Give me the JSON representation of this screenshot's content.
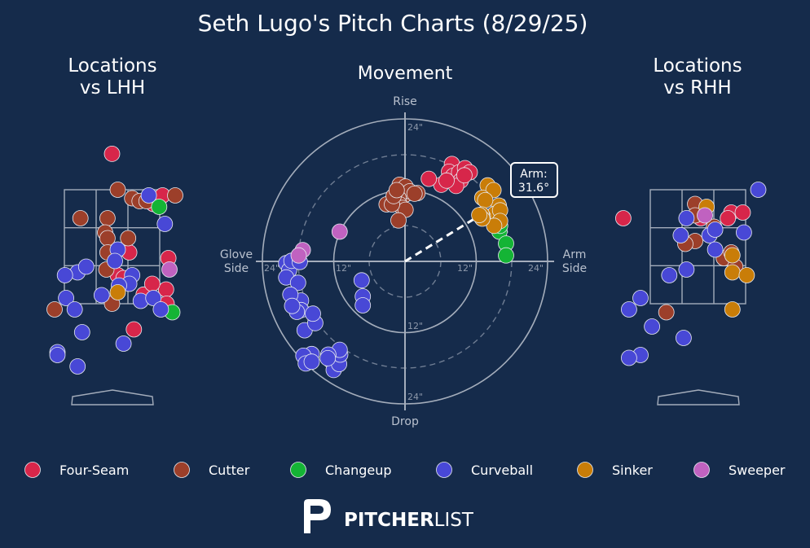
{
  "title": "Seth Lugo's Pitch Charts (8/29/25)",
  "panels": {
    "lhh_title": [
      "Locations",
      "vs LHH"
    ],
    "movement_title": "Movement",
    "rhh_title": [
      "Locations",
      "vs RHH"
    ]
  },
  "movement_labels": {
    "rise": "Rise",
    "drop": "Drop",
    "glove": [
      "Glove",
      "Side"
    ],
    "arm": [
      "Arm",
      "Side"
    ],
    "ticks": [
      "24\"",
      "12\"",
      "12\"",
      "24\"",
      "24\"",
      "12\"",
      "12\"",
      "24\""
    ],
    "arm_angle_label": [
      "Arm:",
      "31.6°"
    ]
  },
  "colors": {
    "background": "#152b4b",
    "Four-Seam": "#d7264a",
    "Cutter": "#9c3f2a",
    "Changeup": "#14b435",
    "Curveball": "#4848d6",
    "Sinker": "#c97d08",
    "Sweeper": "#c062c0"
  },
  "legend": [
    "Four-Seam",
    "Cutter",
    "Changeup",
    "Curveball",
    "Sinker",
    "Sweeper"
  ],
  "brand": {
    "p1": "PITCHER",
    "p2": "LIST"
  },
  "chart_data": [
    {
      "type": "scatter",
      "title": "Movement",
      "arm_angle_deg": 31.6,
      "xlim": [
        -24,
        24
      ],
      "ylim": [
        -24,
        24
      ],
      "series": [
        {
          "name": "Four-Seam",
          "points": [
            [
              7.9,
              16.4
            ],
            [
              7.4,
              15.1
            ],
            [
              8.1,
              14.4
            ],
            [
              9.1,
              15.0
            ],
            [
              10.1,
              15.7
            ],
            [
              10.9,
              15.0
            ],
            [
              9.4,
              13.6
            ],
            [
              8.6,
              12.7
            ],
            [
              6.1,
              12.9
            ],
            [
              4.0,
              13.9
            ],
            [
              10.0,
              14.5
            ],
            [
              7.0,
              13.6
            ]
          ]
        },
        {
          "name": "Cutter",
          "points": [
            [
              -0.9,
              12.9
            ],
            [
              0.1,
              12.6
            ],
            [
              -0.2,
              11.1
            ],
            [
              0.8,
              11.8
            ],
            [
              -1.1,
              10.7
            ],
            [
              -1.4,
              9.7
            ],
            [
              -0.9,
              9.6
            ],
            [
              -0.4,
              9.0
            ],
            [
              0.1,
              8.7
            ],
            [
              -3.1,
              9.6
            ],
            [
              -2.2,
              9.6
            ],
            [
              -1.9,
              11.0
            ],
            [
              -1.4,
              12.0
            ],
            [
              2.1,
              11.5
            ],
            [
              1.6,
              11.4
            ],
            [
              -1.1,
              6.9
            ]
          ]
        },
        {
          "name": "Changeup",
          "points": [
            [
              15.9,
              5.0
            ],
            [
              17.0,
              3.0
            ],
            [
              17.0,
              1.0
            ],
            [
              16.0,
              6.0
            ]
          ]
        },
        {
          "name": "Curveball",
          "points": [
            [
              -20.0,
              -0.3
            ],
            [
              -19.5,
              -1.5
            ],
            [
              -20.0,
              -2.7
            ],
            [
              -19.1,
              0.1
            ],
            [
              -17.7,
              -0.1
            ],
            [
              -18.0,
              -3.6
            ],
            [
              -17.5,
              -6.6
            ],
            [
              -17.5,
              -8.2
            ],
            [
              -19.3,
              -5.6
            ],
            [
              -18.2,
              -8.5
            ],
            [
              -19.0,
              -7.5
            ],
            [
              -16.9,
              -11.6
            ],
            [
              -15.1,
              -10.4
            ],
            [
              -15.5,
              -8.8
            ],
            [
              -15.7,
              -15.6
            ],
            [
              -17.1,
              -15.9
            ],
            [
              -16.7,
              -17.2
            ],
            [
              -15.7,
              -16.9
            ],
            [
              -12.6,
              -16.6
            ],
            [
              -12.0,
              -18.3
            ],
            [
              -11.1,
              -17.3
            ],
            [
              -10.9,
              -15.7
            ],
            [
              -11.0,
              -14.9
            ],
            [
              -12.9,
              -15.7
            ],
            [
              -13.0,
              -16.3
            ],
            [
              -7.3,
              -3.2
            ],
            [
              -7.1,
              -5.9
            ],
            [
              -7.1,
              -7.4
            ]
          ]
        },
        {
          "name": "Sinker",
          "points": [
            [
              13.9,
              12.8
            ],
            [
              14.9,
              12.0
            ],
            [
              15.8,
              9.4
            ],
            [
              15.1,
              8.0
            ],
            [
              16.0,
              8.6
            ],
            [
              13.0,
              10.7
            ],
            [
              13.5,
              10.3
            ],
            [
              13.1,
              7.6
            ],
            [
              16.0,
              6.8
            ],
            [
              12.9,
              7.9
            ],
            [
              15.0,
              6.0
            ],
            [
              13.0,
              7.2
            ],
            [
              12.5,
              7.8
            ]
          ]
        },
        {
          "name": "Sweeper",
          "points": [
            [
              -17.2,
              1.9
            ],
            [
              -17.9,
              1.0
            ],
            [
              -11.0,
              5.0
            ]
          ]
        }
      ]
    },
    {
      "type": "scatter",
      "title": "Locations vs LHH",
      "xlim": [
        -2,
        2
      ],
      "ylim": [
        0,
        5
      ],
      "series": [
        {
          "name": "Four-Seam",
          "points": [
            [
              0.0,
              4.13
            ],
            [
              0.72,
              3.25
            ],
            [
              0.88,
              3.4
            ],
            [
              0.3,
              2.4
            ],
            [
              0.1,
              2.0
            ],
            [
              0.2,
              1.95
            ],
            [
              0.55,
              1.66
            ],
            [
              0.98,
              2.3
            ],
            [
              0.94,
              1.75
            ],
            [
              0.7,
              1.85
            ],
            [
              0.38,
              1.05
            ],
            [
              0.95,
              1.5
            ]
          ]
        },
        {
          "name": "Cutter",
          "points": [
            [
              0.35,
              3.35
            ],
            [
              0.48,
              3.3
            ],
            [
              0.1,
              3.5
            ],
            [
              -0.55,
              3.0
            ],
            [
              -0.08,
              3.0
            ],
            [
              -0.12,
              2.75
            ],
            [
              -0.08,
              2.65
            ],
            [
              0.28,
              2.65
            ],
            [
              -0.08,
              2.4
            ],
            [
              -0.1,
              2.1
            ],
            [
              -1.0,
              1.4
            ],
            [
              0.0,
              1.5
            ],
            [
              1.1,
              3.4
            ],
            [
              0.6,
              3.3
            ]
          ]
        },
        {
          "name": "Changeup",
          "points": [
            [
              0.82,
              3.2
            ],
            [
              1.05,
              1.35
            ]
          ]
        },
        {
          "name": "Curveball",
          "points": [
            [
              0.64,
              3.4
            ],
            [
              0.92,
              2.9
            ],
            [
              0.1,
              2.45
            ],
            [
              0.05,
              2.25
            ],
            [
              0.35,
              2.0
            ],
            [
              0.3,
              1.85
            ],
            [
              0.12,
              1.82
            ],
            [
              -0.6,
              2.05
            ],
            [
              -0.45,
              2.15
            ],
            [
              -0.82,
              2.0
            ],
            [
              -0.8,
              1.6
            ],
            [
              -0.65,
              1.4
            ],
            [
              -0.18,
              1.65
            ],
            [
              0.5,
              1.55
            ],
            [
              0.72,
              1.6
            ],
            [
              0.85,
              1.4
            ],
            [
              -0.52,
              1.0
            ],
            [
              0.2,
              0.8
            ],
            [
              -0.95,
              0.65
            ],
            [
              -0.95,
              0.6
            ],
            [
              -0.6,
              0.4
            ]
          ]
        },
        {
          "name": "Sinker",
          "points": [
            [
              0.1,
              1.7
            ]
          ]
        },
        {
          "name": "Sweeper",
          "points": [
            [
              1.0,
              2.1
            ]
          ]
        }
      ]
    },
    {
      "type": "scatter",
      "title": "Locations vs RHH",
      "xlim": [
        -2,
        2
      ],
      "ylim": [
        0,
        5
      ],
      "series": [
        {
          "name": "Four-Seam",
          "points": [
            [
              0.05,
              3.0
            ],
            [
              0.58,
              3.1
            ],
            [
              0.52,
              3.0
            ],
            [
              0.78,
              3.1
            ],
            [
              -1.3,
              3.0
            ]
          ]
        },
        {
          "name": "Cutter",
          "points": [
            [
              -0.05,
              3.25
            ],
            [
              -0.05,
              3.05
            ],
            [
              0.28,
              2.85
            ],
            [
              -0.05,
              2.6
            ],
            [
              0.45,
              2.3
            ],
            [
              0.58,
              2.4
            ],
            [
              -0.22,
              2.55
            ],
            [
              0.65,
              2.15
            ],
            [
              -0.55,
              1.35
            ]
          ]
        },
        {
          "name": "Changeup",
          "points": []
        },
        {
          "name": "Curveball",
          "points": [
            [
              1.05,
              3.5
            ],
            [
              -0.2,
              3.0
            ],
            [
              0.2,
              2.7
            ],
            [
              0.3,
              2.8
            ],
            [
              0.8,
              2.75
            ],
            [
              -0.3,
              2.7
            ],
            [
              0.3,
              2.45
            ],
            [
              -0.2,
              2.1
            ],
            [
              -0.5,
              2.0
            ],
            [
              -1.0,
              1.6
            ],
            [
              -1.2,
              1.4
            ],
            [
              -0.8,
              1.1
            ],
            [
              -0.25,
              0.9
            ],
            [
              -1.0,
              0.6
            ],
            [
              -1.2,
              0.55
            ]
          ]
        },
        {
          "name": "Sinker",
          "points": [
            [
              0.15,
              3.2
            ],
            [
              0.6,
              2.35
            ],
            [
              0.6,
              2.05
            ],
            [
              0.85,
              2.0
            ],
            [
              0.6,
              1.4
            ]
          ]
        },
        {
          "name": "Sweeper",
          "points": [
            [
              0.12,
              3.05
            ]
          ]
        }
      ]
    }
  ]
}
